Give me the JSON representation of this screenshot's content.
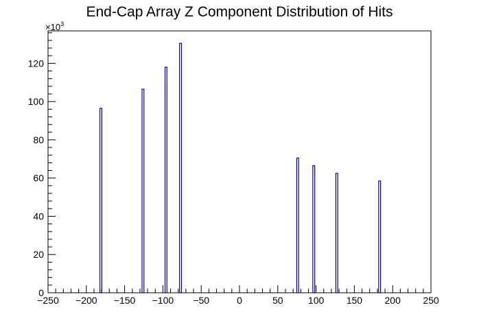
{
  "chart_data": {
    "type": "bar",
    "title": "End-Cap Array Z Component Distribution of Hits",
    "xlabel": "",
    "ylabel": "",
    "y_multiplier_label": "×10",
    "y_multiplier_exponent": "3",
    "xlim": [
      -250,
      250
    ],
    "ylim": [
      0,
      137
    ],
    "x_ticks": [
      "−250",
      "−200",
      "−150",
      "−100",
      "−50",
      "0",
      "50",
      "100",
      "150",
      "200",
      "250"
    ],
    "y_ticks": [
      "0",
      "20",
      "40",
      "60",
      "80",
      "100",
      "120"
    ],
    "bin_width": 2.5,
    "x": [
      -181,
      -126,
      -96,
      -77,
      76,
      97,
      127,
      183
    ],
    "values": [
      96.5,
      106.5,
      118,
      130.5,
      70.5,
      66.5,
      62.5,
      58.5
    ],
    "grid": false,
    "legend": "none",
    "bar_outline_color": "#000099",
    "bar_fill_color": "#ffffff"
  }
}
